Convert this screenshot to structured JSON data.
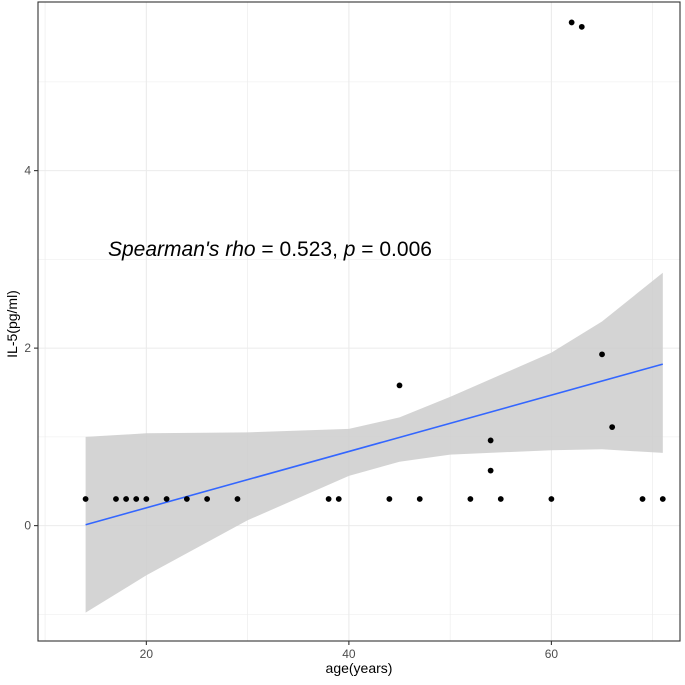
{
  "chart_data": {
    "type": "scatter",
    "title": "",
    "xlabel": "age(years)",
    "ylabel": "IL-5(pg/ml)",
    "xlim": [
      9.3,
      72.7
    ],
    "ylim": [
      -1.3,
      5.9
    ],
    "x_ticks": [
      20,
      40,
      60
    ],
    "y_ticks": [
      0,
      2,
      4
    ],
    "x_tick_labels": [
      "20",
      "40",
      "60"
    ],
    "y_tick_labels": [
      "0",
      "2",
      "4"
    ],
    "grid": true,
    "legend": "none",
    "annotation": {
      "label_italic": "Spearman's rho",
      "eq1": " = 0.523, ",
      "p_italic": "p",
      "eq2": " = 0.006"
    },
    "points": [
      {
        "x": 14,
        "y": 0.3
      },
      {
        "x": 17,
        "y": 0.3
      },
      {
        "x": 18,
        "y": 0.3
      },
      {
        "x": 19,
        "y": 0.3
      },
      {
        "x": 20,
        "y": 0.3
      },
      {
        "x": 22,
        "y": 0.3
      },
      {
        "x": 24,
        "y": 0.3
      },
      {
        "x": 26,
        "y": 0.3
      },
      {
        "x": 29,
        "y": 0.3
      },
      {
        "x": 38,
        "y": 0.3
      },
      {
        "x": 39,
        "y": 0.3
      },
      {
        "x": 44,
        "y": 0.3
      },
      {
        "x": 45,
        "y": 1.58
      },
      {
        "x": 47,
        "y": 0.3
      },
      {
        "x": 52,
        "y": 0.3
      },
      {
        "x": 54,
        "y": 0.96
      },
      {
        "x": 54,
        "y": 0.62
      },
      {
        "x": 55,
        "y": 0.3
      },
      {
        "x": 60,
        "y": 0.3
      },
      {
        "x": 62,
        "y": 5.67
      },
      {
        "x": 63,
        "y": 5.62
      },
      {
        "x": 65,
        "y": 1.93
      },
      {
        "x": 66,
        "y": 1.11
      },
      {
        "x": 69,
        "y": 0.3
      },
      {
        "x": 71,
        "y": 0.3
      }
    ],
    "fit_line": {
      "x": [
        14,
        71
      ],
      "y": [
        0.01,
        1.82
      ],
      "color": "#3366FF"
    },
    "confidence_band": {
      "x": [
        14,
        20,
        30,
        40,
        45,
        50,
        60,
        65,
        71
      ],
      "lower": [
        -0.98,
        -0.56,
        0.06,
        0.56,
        0.72,
        0.8,
        0.85,
        0.86,
        0.82
      ],
      "upper": [
        1.0,
        1.04,
        1.05,
        1.09,
        1.22,
        1.45,
        1.95,
        2.3,
        2.85
      ],
      "color": "#CCCCCC"
    },
    "colors": {
      "panel_bg": "#FFFFFF",
      "grid": "#EBEBEB",
      "border": "#333333",
      "point": "#000000"
    }
  }
}
